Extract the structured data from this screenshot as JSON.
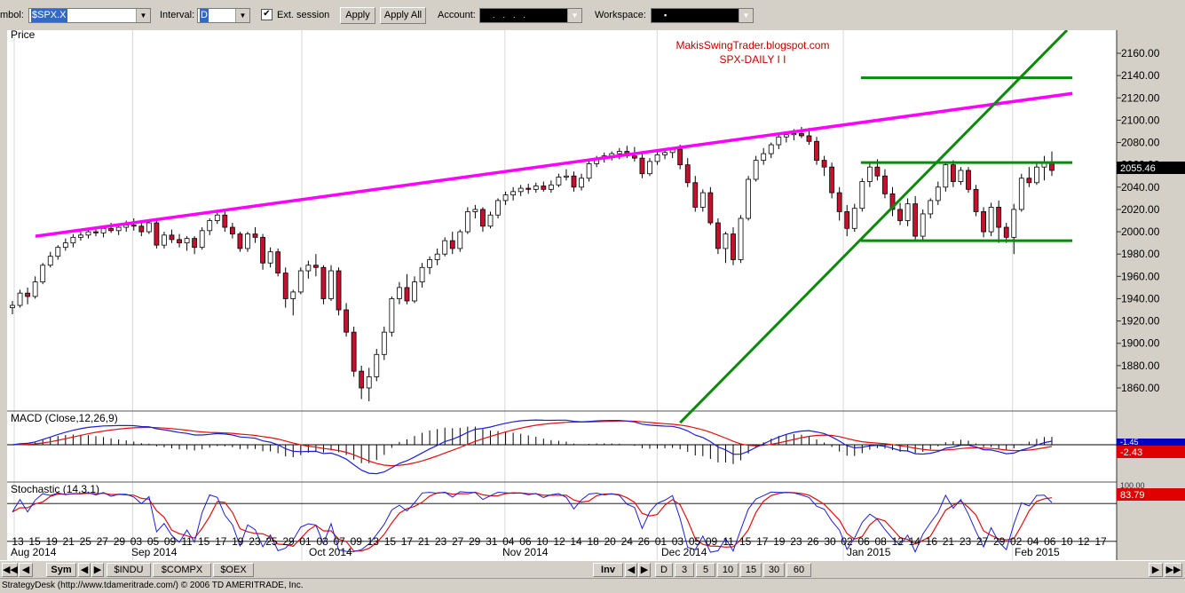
{
  "toolbar": {
    "symbol_label": "mbol:",
    "symbol_value": "$SPX.X",
    "interval_label": "Interval:",
    "interval_value": "D",
    "ext_session_label": "Ext. session",
    "ext_session_checked": "✔",
    "apply_label": "Apply",
    "apply_all_label": "Apply All",
    "account_label": "Account:",
    "account_value": "....",
    "workspace_label": "Workspace:",
    "workspace_value": "▪"
  },
  "price_panel": {
    "label": "Price",
    "annotation_line1": "MakisSwingTrader.blogspot.com",
    "annotation_line2": "SPX-DAILY   I I",
    "last_price": "2055.46",
    "y_ticks": [
      "2160.00",
      "2140.00",
      "2120.00",
      "2100.00",
      "2080.00",
      "2060.00",
      "2040.00",
      "2020.00",
      "2000.00",
      "1980.00",
      "1960.00",
      "1940.00",
      "1920.00",
      "1900.00",
      "1880.00",
      "1860.00"
    ]
  },
  "macd_panel": {
    "label": "MACD (Close,12,26,9)",
    "value": "-2.43",
    "value2": "-1.45"
  },
  "stoch_panel": {
    "label": "Stochastic (14,3,1)",
    "value": "83.79",
    "value2": "100.00"
  },
  "x_axis": {
    "day_labels": [
      "13",
      "15",
      "19",
      "21",
      "25",
      "27",
      "29",
      "03",
      "05",
      "09",
      "11",
      "15",
      "17",
      "19",
      "23",
      "25",
      "29",
      "01",
      "03",
      "07",
      "09",
      "13",
      "15",
      "17",
      "21",
      "23",
      "27",
      "29",
      "31",
      "04",
      "06",
      "10",
      "12",
      "14",
      "18",
      "20",
      "24",
      "26",
      "01",
      "03",
      "05",
      "09",
      "11",
      "15",
      "17",
      "19",
      "23",
      "26",
      "30",
      "02",
      "06",
      "08",
      "12",
      "14",
      "16",
      "21",
      "23",
      "27",
      "29",
      "02",
      "04",
      "06",
      "10",
      "12",
      "17"
    ],
    "month_labels": [
      "Aug 2014",
      "Sep 2014",
      "Oct 2014",
      "Nov 2014",
      "Dec 2014",
      "Jan 2015",
      "Feb 2015"
    ]
  },
  "bottom_tabs": {
    "sym": "Sym",
    "symbols": [
      "$INDU",
      "$COMPX",
      "$OEX"
    ],
    "inv": "Inv",
    "intervals": [
      "D",
      "3",
      "5",
      "10",
      "15",
      "30",
      "60"
    ]
  },
  "colors": {
    "up": "#ffffff",
    "down": "#c8102e",
    "trendline": "#ff00ff",
    "range": "#0a8a0a",
    "macd": "#1f1fd0",
    "signal": "#e01010",
    "annotation": "#c00000"
  },
  "status_bar": "StrategyDesk (http://www.tdameritrade.com/) © 2006 TD AMERITRADE, Inc.",
  "chart_data": {
    "type": "candlestick",
    "title": "SPX-DAILY",
    "ylim": [
      1845,
      2170
    ],
    "candles": [
      [
        1932,
        1938,
        1926,
        1934
      ],
      [
        1934,
        1948,
        1932,
        1945
      ],
      [
        1945,
        1950,
        1935,
        1942
      ],
      [
        1942,
        1960,
        1940,
        1955
      ],
      [
        1955,
        1972,
        1953,
        1970
      ],
      [
        1970,
        1982,
        1968,
        1978
      ],
      [
        1978,
        1988,
        1975,
        1986
      ],
      [
        1986,
        1994,
        1983,
        1990
      ],
      [
        1990,
        1998,
        1986,
        1995
      ],
      [
        1995,
        2000,
        1992,
        1997
      ],
      [
        1997,
        2002,
        1994,
        2000
      ],
      [
        2000,
        2004,
        1996,
        1999
      ],
      [
        1999,
        2005,
        1995,
        2003
      ],
      [
        2003,
        2008,
        1999,
        2001
      ],
      [
        2001,
        2006,
        1997,
        2004
      ],
      [
        2004,
        2010,
        2000,
        2006
      ],
      [
        2006,
        2012,
        2001,
        2005
      ],
      [
        2005,
        2008,
        1996,
        2000
      ],
      [
        2000,
        2011,
        1998,
        2008
      ],
      [
        2008,
        2011,
        1985,
        1988
      ],
      [
        1988,
        2000,
        1985,
        1997
      ],
      [
        1997,
        2002,
        1990,
        1993
      ],
      [
        1993,
        1998,
        1986,
        1990
      ],
      [
        1990,
        1996,
        1983,
        1994
      ],
      [
        1994,
        1996,
        1980,
        1986
      ],
      [
        1986,
        2004,
        1984,
        2001
      ],
      [
        2001,
        2012,
        1997,
        2010
      ],
      [
        2010,
        2019,
        2007,
        2015
      ],
      [
        2015,
        2018,
        2000,
        2004
      ],
      [
        2004,
        2008,
        1994,
        1998
      ],
      [
        1998,
        2000,
        1982,
        1985
      ],
      [
        1985,
        2000,
        1982,
        1998
      ],
      [
        1998,
        2004,
        1990,
        1995
      ],
      [
        1995,
        1998,
        1966,
        1972
      ],
      [
        1972,
        1986,
        1968,
        1982
      ],
      [
        1982,
        1985,
        1960,
        1963
      ],
      [
        1963,
        1968,
        1932,
        1940
      ],
      [
        1940,
        1948,
        1925,
        1946
      ],
      [
        1946,
        1968,
        1944,
        1965
      ],
      [
        1965,
        1974,
        1958,
        1970
      ],
      [
        1970,
        1980,
        1960,
        1968
      ],
      [
        1968,
        1970,
        1935,
        1940
      ],
      [
        1940,
        1970,
        1938,
        1965
      ],
      [
        1965,
        1968,
        1925,
        1930
      ],
      [
        1930,
        1936,
        1906,
        1910
      ],
      [
        1910,
        1915,
        1870,
        1875
      ],
      [
        1875,
        1880,
        1850,
        1860
      ],
      [
        1860,
        1878,
        1848,
        1870
      ],
      [
        1870,
        1895,
        1866,
        1890
      ],
      [
        1890,
        1915,
        1885,
        1910
      ],
      [
        1910,
        1942,
        1906,
        1940
      ],
      [
        1940,
        1955,
        1935,
        1950
      ],
      [
        1950,
        1962,
        1935,
        1938
      ],
      [
        1938,
        1960,
        1936,
        1955
      ],
      [
        1955,
        1972,
        1950,
        1968
      ],
      [
        1968,
        1978,
        1962,
        1975
      ],
      [
        1975,
        1985,
        1970,
        1980
      ],
      [
        1980,
        1995,
        1978,
        1992
      ],
      [
        1992,
        2000,
        1980,
        1985
      ],
      [
        1985,
        2002,
        1982,
        2000
      ],
      [
        2000,
        2022,
        1998,
        2018
      ],
      [
        2018,
        2024,
        2012,
        2020
      ],
      [
        2020,
        2022,
        2000,
        2005
      ],
      [
        2005,
        2018,
        2003,
        2015
      ],
      [
        2015,
        2030,
        2012,
        2028
      ],
      [
        2028,
        2036,
        2024,
        2033
      ],
      [
        2033,
        2040,
        2028,
        2036
      ],
      [
        2036,
        2042,
        2032,
        2039
      ],
      [
        2039,
        2043,
        2034,
        2038
      ],
      [
        2038,
        2044,
        2035,
        2041
      ],
      [
        2041,
        2045,
        2036,
        2038
      ],
      [
        2038,
        2046,
        2035,
        2042
      ],
      [
        2042,
        2052,
        2040,
        2049
      ],
      [
        2049,
        2056,
        2046,
        2050
      ],
      [
        2050,
        2054,
        2036,
        2040
      ],
      [
        2040,
        2052,
        2037,
        2048
      ],
      [
        2048,
        2064,
        2045,
        2061
      ],
      [
        2061,
        2068,
        2058,
        2066
      ],
      [
        2066,
        2071,
        2062,
        2068
      ],
      [
        2068,
        2072,
        2064,
        2070
      ],
      [
        2070,
        2075,
        2065,
        2072
      ],
      [
        2072,
        2077,
        2066,
        2068
      ],
      [
        2068,
        2076,
        2063,
        2066
      ],
      [
        2066,
        2070,
        2048,
        2052
      ],
      [
        2052,
        2066,
        2050,
        2063
      ],
      [
        2063,
        2072,
        2060,
        2069
      ],
      [
        2069,
        2075,
        2065,
        2071
      ],
      [
        2071,
        2076,
        2066,
        2074
      ],
      [
        2074,
        2078,
        2056,
        2060
      ],
      [
        2060,
        2066,
        2040,
        2044
      ],
      [
        2044,
        2050,
        2018,
        2022
      ],
      [
        2022,
        2038,
        2018,
        2035
      ],
      [
        2035,
        2040,
        2006,
        2008
      ],
      [
        2008,
        2012,
        1980,
        1985
      ],
      [
        1985,
        2000,
        1972,
        1998
      ],
      [
        1998,
        2004,
        1970,
        1975
      ],
      [
        1975,
        2015,
        1972,
        2012
      ],
      [
        2012,
        2050,
        2010,
        2047
      ],
      [
        2047,
        2068,
        2045,
        2064
      ],
      [
        2064,
        2075,
        2060,
        2070
      ],
      [
        2070,
        2080,
        2066,
        2078
      ],
      [
        2078,
        2088,
        2074,
        2085
      ],
      [
        2085,
        2090,
        2080,
        2087
      ],
      [
        2087,
        2092,
        2082,
        2088
      ],
      [
        2088,
        2094,
        2084,
        2086
      ],
      [
        2086,
        2093,
        2078,
        2081
      ],
      [
        2081,
        2085,
        2060,
        2064
      ],
      [
        2064,
        2068,
        2050,
        2058
      ],
      [
        2058,
        2062,
        2030,
        2035
      ],
      [
        2035,
        2040,
        2010,
        2018
      ],
      [
        2018,
        2024,
        1996,
        2003
      ],
      [
        2003,
        2025,
        2000,
        2021
      ],
      [
        2021,
        2048,
        2018,
        2045
      ],
      [
        2045,
        2062,
        2040,
        2058
      ],
      [
        2058,
        2065,
        2046,
        2050
      ],
      [
        2050,
        2056,
        2030,
        2034
      ],
      [
        2034,
        2040,
        2014,
        2020
      ],
      [
        2020,
        2026,
        2006,
        2010
      ],
      [
        2010,
        2030,
        2005,
        2025
      ],
      [
        2025,
        2032,
        1993,
        1996
      ],
      [
        1996,
        2020,
        1992,
        2016
      ],
      [
        2016,
        2030,
        2012,
        2028
      ],
      [
        2028,
        2045,
        2024,
        2040
      ],
      [
        2040,
        2063,
        2036,
        2060
      ],
      [
        2060,
        2064,
        2040,
        2045
      ],
      [
        2045,
        2058,
        2042,
        2055
      ],
      [
        2055,
        2058,
        2035,
        2038
      ],
      [
        2038,
        2042,
        2014,
        2018
      ],
      [
        2018,
        2022,
        1995,
        2000
      ],
      [
        2000,
        2026,
        1996,
        2022
      ],
      [
        2022,
        2028,
        1990,
        2004
      ],
      [
        2004,
        2008,
        1990,
        1995
      ],
      [
        1995,
        2025,
        1980,
        2020
      ],
      [
        2020,
        2052,
        2018,
        2048
      ],
      [
        2048,
        2058,
        2040,
        2044
      ],
      [
        2044,
        2062,
        2042,
        2058
      ],
      [
        2058,
        2068,
        2046,
        2062
      ],
      [
        2062,
        2072,
        2050,
        2055
      ]
    ],
    "trendline": {
      "from": [
        0,
        1996
      ],
      "to": [
        139,
        2124
      ]
    },
    "range_lines": [
      2138,
      2062,
      1992
    ]
  }
}
